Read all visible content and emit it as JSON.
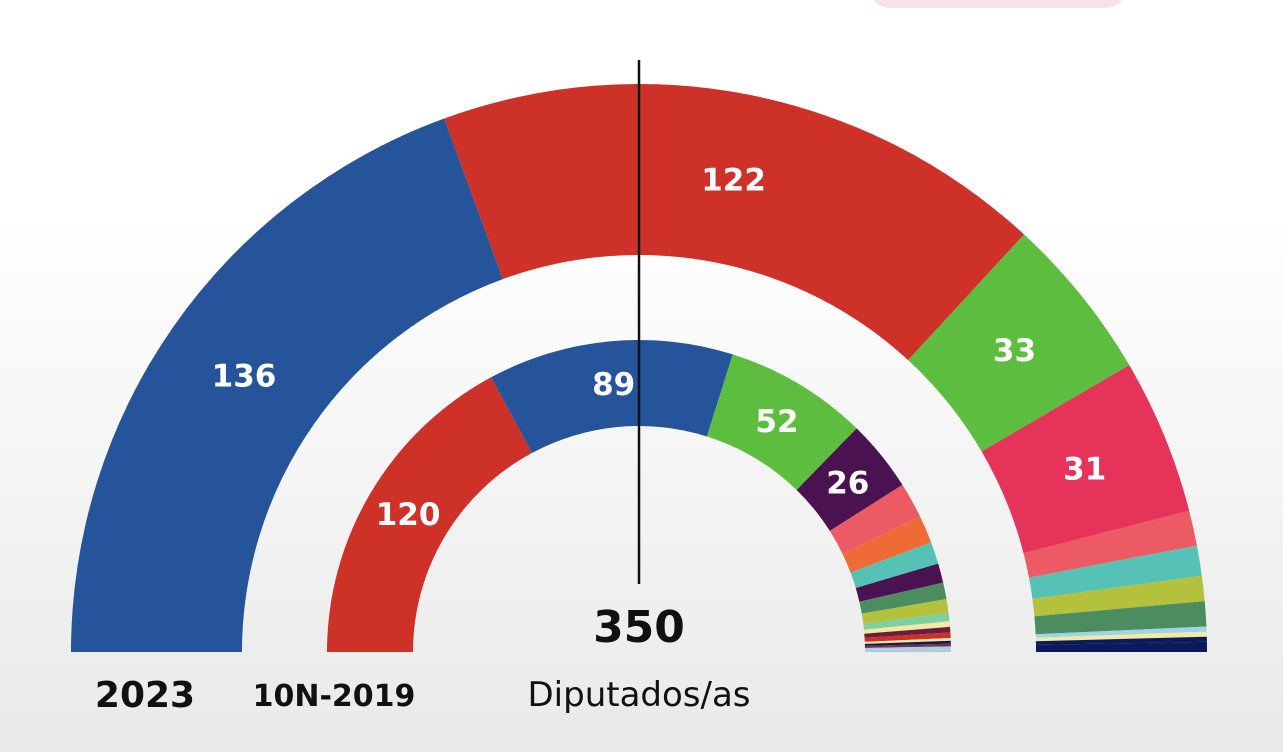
{
  "chart_data": {
    "type": "parliament-hemicycle",
    "total_seats": 350,
    "total_label": "350",
    "total_caption": "Diputados/as",
    "rings": [
      {
        "name": "2023",
        "label": "2023",
        "seats": [
          {
            "value": 136,
            "label": "136",
            "color": "#25549b"
          },
          {
            "value": 122,
            "label": "122",
            "color": "#cd3128"
          },
          {
            "value": 33,
            "label": "33",
            "color": "#5dbd3f"
          },
          {
            "value": 31,
            "label": "31",
            "color": "#e5335a"
          },
          {
            "value": 7,
            "label": "",
            "color": "#ec5a64"
          },
          {
            "value": 6,
            "label": "",
            "color": "#56c2b5"
          },
          {
            "value": 5,
            "label": "",
            "color": "#b3c13d"
          },
          {
            "value": 5,
            "label": "",
            "color": "#4b8d5f"
          },
          {
            "value": 1,
            "label": "",
            "color": "#9fd3ea"
          },
          {
            "value": 1,
            "label": "",
            "color": "#f3e9a2"
          },
          {
            "value": 1,
            "label": "",
            "color": "#0b1a5c"
          },
          {
            "value": 2,
            "label": "",
            "color": "#0b1a5c"
          }
        ]
      },
      {
        "name": "10N-2019",
        "label": "10N-2019",
        "seats": [
          {
            "value": 120,
            "label": "120",
            "color": "#cd3128"
          },
          {
            "value": 89,
            "label": "89",
            "color": "#25549b"
          },
          {
            "value": 52,
            "label": "52",
            "color": "#5dbd3f"
          },
          {
            "value": 26,
            "label": "26",
            "color": "#4a1250"
          },
          {
            "value": 13,
            "label": "",
            "color": "#ec5a64"
          },
          {
            "value": 10,
            "label": "",
            "color": "#ee6b35"
          },
          {
            "value": 8,
            "label": "",
            "color": "#56c2b5"
          },
          {
            "value": 7,
            "label": "",
            "color": "#4a1250"
          },
          {
            "value": 6,
            "label": "",
            "color": "#4b8d5f"
          },
          {
            "value": 5,
            "label": "",
            "color": "#b3c13d"
          },
          {
            "value": 3,
            "label": "",
            "color": "#7fd0a0"
          },
          {
            "value": 2,
            "label": "",
            "color": "#f3e9a2"
          },
          {
            "value": 2,
            "label": "",
            "color": "#6b1d3f"
          },
          {
            "value": 2,
            "label": "",
            "color": "#cd3128"
          },
          {
            "value": 1,
            "label": "",
            "color": "#f3e9a2"
          },
          {
            "value": 1,
            "label": "",
            "color": "#0b1a5c"
          },
          {
            "value": 1,
            "label": "",
            "color": "#7a2e3f"
          },
          {
            "value": 1,
            "label": "",
            "color": "#9fd3ea"
          },
          {
            "value": 1,
            "label": "",
            "color": "#b7c7d8"
          }
        ]
      }
    ]
  }
}
